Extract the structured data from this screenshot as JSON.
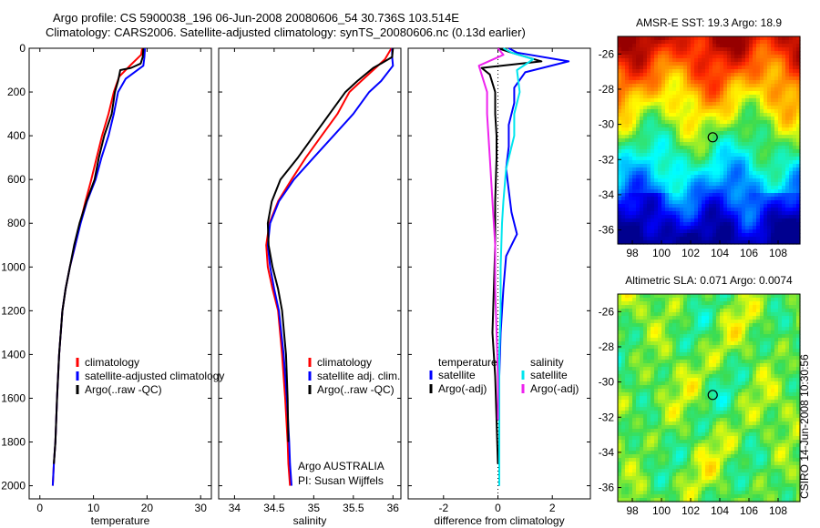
{
  "header": {
    "line1": "Argo profile: CS 5900038_196 06-Jun-2008 20080606_54 30.736S 103.514E",
    "line2": "Climatology: CARS2006. Satellite-adjusted climatology: synTS_20080606.nc (0.13d earlier)"
  },
  "side_label": "CSIRO 14-Jun-2008 10:30:56",
  "colors": {
    "climatology": "#ff0000",
    "satellite": "#0000ff",
    "argo": "#000000",
    "cyan": "#00e5ee",
    "magenta": "#ee22ee"
  },
  "chart_data": [
    {
      "type": "line",
      "xlabel": "temperature",
      "xlim": [
        -2,
        32
      ],
      "ylim": [
        0,
        2060
      ],
      "y_inverted": true,
      "xticks": [
        0,
        10,
        20,
        30
      ],
      "yticks": [
        0,
        200,
        400,
        600,
        800,
        1000,
        1200,
        1400,
        1600,
        1800,
        2000
      ],
      "legend": {
        "entries": [
          {
            "label": "climatology",
            "color": "#ff0000"
          },
          {
            "label": "satellite-adjusted climatology",
            "color": "#0000ff"
          },
          {
            "label": "Argo(..raw -QC)",
            "color": "#000000"
          }
        ]
      },
      "series": [
        {
          "color": "#ff0000",
          "x": [
            19.1,
            18.9,
            17.0,
            14.8,
            13.8,
            12.8,
            11.6,
            10.6,
            9.6,
            8.5,
            7.5,
            6.6,
            5.6,
            4.8,
            4.2,
            3.6,
            3.2,
            2.9,
            2.6,
            2.4
          ],
          "y": [
            0,
            30,
            75,
            130,
            200,
            300,
            400,
            500,
            600,
            700,
            800,
            900,
            1000,
            1100,
            1200,
            1400,
            1600,
            1800,
            1900,
            2000
          ]
        },
        {
          "color": "#0000ff",
          "x": [
            19.6,
            19.5,
            19.3,
            16.0,
            14.6,
            13.8,
            12.8,
            11.5,
            10.4,
            8.8,
            7.6,
            6.6,
            5.6,
            4.8,
            4.2,
            3.6,
            3.2,
            2.9,
            2.6,
            2.4
          ],
          "y": [
            0,
            40,
            80,
            140,
            200,
            300,
            400,
            500,
            600,
            700,
            800,
            900,
            1000,
            1100,
            1200,
            1400,
            1600,
            1800,
            1900,
            2000
          ]
        },
        {
          "color": "#000000",
          "x": [
            19.3,
            19.2,
            18.8,
            17.0,
            15.0,
            14.6,
            14.0,
            13.4,
            12.0,
            11.0,
            10.2,
            8.7,
            7.4,
            6.4,
            5.6,
            4.8,
            4.2,
            3.6,
            3.2,
            2.9,
            2.6
          ],
          "y": [
            0,
            40,
            70,
            90,
            100,
            150,
            200,
            300,
            400,
            500,
            600,
            700,
            800,
            900,
            1000,
            1100,
            1200,
            1400,
            1600,
            1800,
            1900
          ]
        }
      ]
    },
    {
      "type": "line",
      "xlabel": "salinity",
      "xlim": [
        33.8,
        36.1
      ],
      "ylim": [
        0,
        2060
      ],
      "y_inverted": true,
      "xticks": [
        34,
        34.5,
        35,
        35.5,
        36
      ],
      "xtick_labels": [
        "34",
        "34.5",
        "35",
        "35.5",
        "36"
      ],
      "legend": {
        "entries": [
          {
            "label": "climatology",
            "color": "#ff0000"
          },
          {
            "label": "satellite adj. clim.",
            "color": "#0000ff"
          },
          {
            "label": "Argo(..raw -QC)",
            "color": "#000000"
          }
        ]
      },
      "annotation": {
        "line1": "Argo AUSTRALIA",
        "line2": "PI: Susan Wijffels"
      },
      "series": [
        {
          "color": "#ff0000",
          "x": [
            35.98,
            35.9,
            35.78,
            35.6,
            35.45,
            35.3,
            35.1,
            34.9,
            34.72,
            34.55,
            34.44,
            34.4,
            34.42,
            34.48,
            34.55,
            34.6,
            34.64,
            34.67,
            34.68,
            34.7
          ],
          "y": [
            0,
            50,
            90,
            150,
            200,
            300,
            400,
            500,
            600,
            700,
            800,
            900,
            1000,
            1100,
            1200,
            1400,
            1600,
            1800,
            1900,
            2000
          ]
        },
        {
          "color": "#0000ff",
          "x": [
            35.99,
            35.99,
            36.0,
            35.85,
            35.7,
            35.5,
            35.25,
            35.0,
            34.75,
            34.56,
            34.45,
            34.42,
            34.45,
            34.5,
            34.56,
            34.62,
            34.66,
            34.69,
            34.7,
            34.72
          ],
          "y": [
            0,
            40,
            80,
            150,
            200,
            300,
            400,
            500,
            600,
            700,
            800,
            900,
            1000,
            1100,
            1200,
            1400,
            1600,
            1800,
            1900,
            2000
          ]
        },
        {
          "color": "#000000",
          "x": [
            36.0,
            35.99,
            35.85,
            35.75,
            35.55,
            35.4,
            35.2,
            35.0,
            34.8,
            34.58,
            34.47,
            34.42,
            34.43,
            34.48,
            34.55,
            34.6,
            34.65,
            34.67,
            34.68
          ],
          "y": [
            0,
            40,
            70,
            90,
            150,
            200,
            300,
            400,
            500,
            600,
            700,
            800,
            900,
            1000,
            1100,
            1200,
            1400,
            1600,
            1800
          ]
        }
      ]
    },
    {
      "type": "line",
      "xlabel": "difference from climatology",
      "xlim": [
        -3.3,
        3.4
      ],
      "ylim": [
        0,
        2060
      ],
      "y_inverted": true,
      "xticks": [
        -2,
        0,
        2
      ],
      "legend": {
        "col1_title": "temperature",
        "col2_title": "salinity",
        "entries": [
          {
            "label": "satellite",
            "color": "#0000ff"
          },
          {
            "label": "Argo(-adj)",
            "color": "#000000"
          },
          {
            "label": "satellite",
            "color": "#00e5ee"
          },
          {
            "label": "Argo(-adj)",
            "color": "#ee22ee"
          }
        ]
      },
      "series": [
        {
          "color": "#0000ff",
          "x": [
            0.4,
            0.7,
            2.6,
            1.0,
            0.6,
            0.6,
            0.4,
            0.4,
            0.3,
            0.4,
            0.5,
            0.6,
            0.7,
            0.3,
            0.2,
            0.1,
            0.05,
            0.05,
            0.05,
            0.05
          ],
          "y": [
            0,
            20,
            60,
            110,
            180,
            250,
            350,
            450,
            550,
            650,
            750,
            800,
            850,
            950,
            1100,
            1300,
            1500,
            1700,
            1900,
            2000
          ]
        },
        {
          "color": "#000000",
          "x": [
            0.0,
            0.5,
            1.6,
            -0.6,
            -0.3,
            -0.1,
            -0.1,
            -0.05,
            -0.05,
            -0.1,
            -0.1,
            -0.15,
            -0.2,
            -0.1,
            -0.05,
            0.0
          ],
          "y": [
            0,
            20,
            60,
            90,
            120,
            200,
            300,
            400,
            500,
            700,
            900,
            1100,
            1300,
            1500,
            1700,
            1900
          ]
        },
        {
          "color": "#00e5ee",
          "x": [
            0.2,
            0.5,
            1.3,
            0.7,
            0.8,
            0.6,
            0.6,
            0.3,
            0.2,
            0.15,
            0.1,
            0.1,
            0.05,
            0.05,
            0.05,
            0.05
          ],
          "y": [
            0,
            20,
            50,
            100,
            200,
            300,
            400,
            550,
            700,
            800,
            1000,
            1200,
            1400,
            1600,
            1800,
            2000
          ]
        },
        {
          "color": "#ee22ee",
          "x": [
            0.0,
            0.2,
            -0.7,
            -0.6,
            -0.4,
            -0.4,
            -0.3,
            -0.2,
            -0.1,
            -0.1,
            -0.05,
            0.0,
            0.0
          ],
          "y": [
            0,
            30,
            80,
            120,
            200,
            300,
            500,
            700,
            900,
            1100,
            1300,
            1500,
            1700
          ]
        }
      ]
    },
    {
      "type": "heatmap",
      "title": "AMSR-E SST: 19.3 Argo: 18.9",
      "xlim": [
        97,
        109.5
      ],
      "ylim": [
        -36.8,
        -25
      ],
      "xticks": [
        98,
        100,
        102,
        104,
        106,
        108
      ],
      "yticks": [
        -26,
        -28,
        -30,
        -32,
        -34,
        -36
      ],
      "marker": {
        "lon": 103.514,
        "lat": -30.736
      },
      "colorscale": "jet",
      "field": "sst"
    },
    {
      "type": "heatmap",
      "title": "Altimetric SLA: 0.071 Argo: 0.0074",
      "xlim": [
        97,
        109.5
      ],
      "ylim": [
        -36.8,
        -25
      ],
      "xticks": [
        98,
        100,
        102,
        104,
        106,
        108
      ],
      "yticks": [
        -26,
        -28,
        -30,
        -32,
        -34,
        -36
      ],
      "marker": {
        "lon": 103.514,
        "lat": -30.736
      },
      "colorscale": "jet",
      "field": "sla"
    }
  ]
}
